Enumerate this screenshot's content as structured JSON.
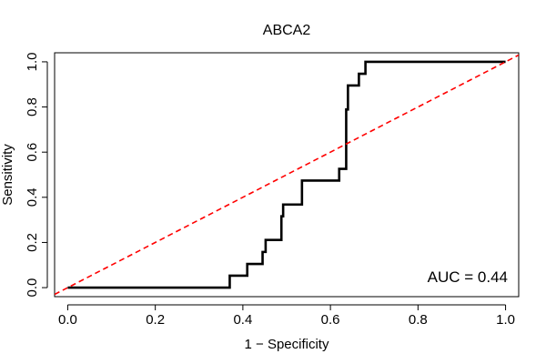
{
  "chart_data": {
    "type": "line",
    "title": "ABCA2",
    "xlabel": "1 − Specificity",
    "ylabel": "Sensitivity",
    "xlim": [
      -0.03,
      1.03
    ],
    "ylim": [
      -0.04,
      1.04
    ],
    "xticks": [
      0.0,
      0.2,
      0.4,
      0.6,
      0.8,
      1.0
    ],
    "xtick_labels": [
      "0.0",
      "0.2",
      "0.4",
      "0.6",
      "0.8",
      "1.0"
    ],
    "yticks": [
      0.0,
      0.2,
      0.4,
      0.6,
      0.8,
      1.0
    ],
    "ytick_labels": [
      "0.0",
      "0.2",
      "0.4",
      "0.6",
      "0.8",
      "1.0"
    ],
    "grid": false,
    "annotation": "AUC = 0.44",
    "series": [
      {
        "color": "#000000",
        "style": "step",
        "x": [
          0.0,
          0.37,
          0.37,
          0.41,
          0.41,
          0.445,
          0.445,
          0.452,
          0.452,
          0.488,
          0.488,
          0.492,
          0.492,
          0.535,
          0.535,
          0.62,
          0.62,
          0.636,
          0.636,
          0.64,
          0.64,
          0.645,
          0.645,
          0.665,
          0.665,
          0.68,
          0.68,
          1.0
        ],
        "y": [
          0.0,
          0.0,
          0.053,
          0.053,
          0.105,
          0.105,
          0.158,
          0.158,
          0.211,
          0.211,
          0.316,
          0.316,
          0.368,
          0.368,
          0.474,
          0.474,
          0.526,
          0.526,
          0.789,
          0.789,
          0.895,
          0.895,
          0.895,
          0.895,
          0.947,
          0.947,
          1.0,
          1.0
        ]
      },
      {
        "color": "#ff0000",
        "style": "dashed",
        "x": [
          -0.03,
          1.03
        ],
        "y": [
          -0.03,
          1.03
        ]
      }
    ]
  }
}
